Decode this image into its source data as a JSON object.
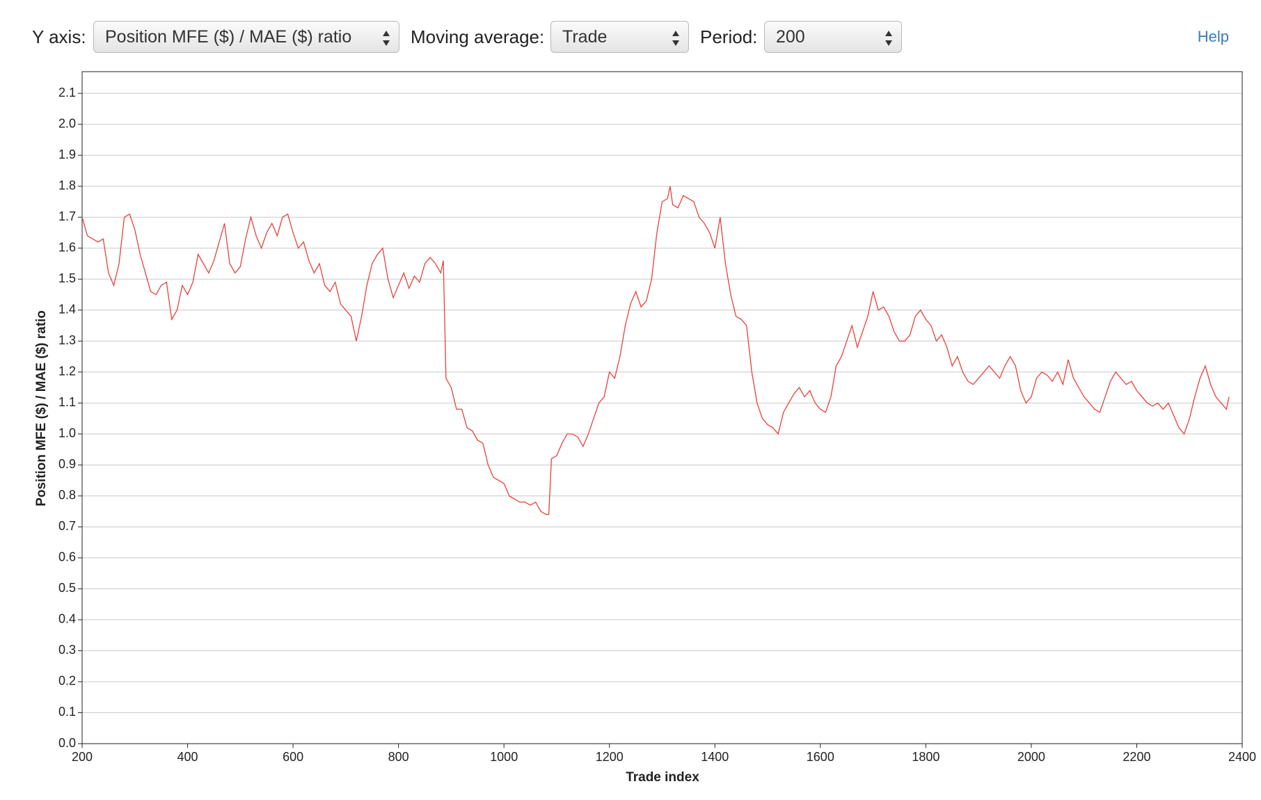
{
  "controls": {
    "y_axis": {
      "label": "Y axis:",
      "value": "Position MFE ($) / MAE ($) ratio"
    },
    "moving_average": {
      "label": "Moving average:",
      "value": "Trade"
    },
    "period": {
      "label": "Period:",
      "value": "200"
    },
    "help": "Help"
  },
  "chart_data": {
    "type": "line",
    "x_label": "Trade index",
    "y_label": "Position MFE ($) / MAE ($) ratio",
    "xlim": [
      200,
      2400
    ],
    "ylim": [
      0,
      2.17
    ],
    "xticks": [
      200,
      400,
      600,
      800,
      1000,
      1200,
      1400,
      1600,
      1800,
      2000,
      2200,
      2400
    ],
    "yticks": [
      {
        "value": 0,
        "label": "0.0"
      },
      0.1,
      0.2,
      0.3,
      0.4,
      0.5,
      0.6,
      0.7,
      0.8,
      0.9,
      {
        "value": 1,
        "label": "1.0"
      },
      1.1,
      1.2,
      1.3,
      1.4,
      1.5,
      1.6,
      1.7,
      1.8,
      1.9,
      {
        "value": 2,
        "label": "2.0"
      },
      2.1
    ],
    "grid": true,
    "series": [
      {
        "color": "#e8413c",
        "x": [
          200,
          210,
          230,
          240,
          250,
          260,
          270,
          280,
          290,
          300,
          310,
          320,
          330,
          340,
          350,
          360,
          370,
          380,
          390,
          400,
          410,
          420,
          430,
          440,
          450,
          460,
          470,
          480,
          490,
          500,
          510,
          520,
          530,
          540,
          550,
          560,
          570,
          580,
          590,
          600,
          610,
          620,
          630,
          640,
          650,
          660,
          670,
          680,
          690,
          700,
          710,
          720,
          730,
          740,
          750,
          760,
          770,
          780,
          790,
          800,
          810,
          820,
          830,
          840,
          850,
          860,
          870,
          880,
          885,
          890,
          900,
          910,
          920,
          930,
          940,
          950,
          960,
          970,
          980,
          990,
          1000,
          1010,
          1020,
          1030,
          1040,
          1050,
          1060,
          1070,
          1080,
          1085,
          1090,
          1100,
          1110,
          1120,
          1130,
          1140,
          1150,
          1160,
          1170,
          1180,
          1190,
          1200,
          1210,
          1220,
          1230,
          1240,
          1250,
          1260,
          1270,
          1280,
          1290,
          1300,
          1310,
          1315,
          1320,
          1330,
          1340,
          1350,
          1360,
          1370,
          1380,
          1390,
          1400,
          1410,
          1420,
          1430,
          1440,
          1450,
          1460,
          1470,
          1480,
          1490,
          1500,
          1510,
          1520,
          1530,
          1540,
          1550,
          1560,
          1570,
          1580,
          1590,
          1600,
          1610,
          1620,
          1630,
          1640,
          1650,
          1660,
          1670,
          1680,
          1690,
          1700,
          1710,
          1720,
          1730,
          1740,
          1750,
          1760,
          1770,
          1780,
          1790,
          1800,
          1810,
          1820,
          1830,
          1840,
          1850,
          1860,
          1870,
          1880,
          1890,
          1900,
          1910,
          1920,
          1930,
          1940,
          1950,
          1960,
          1970,
          1980,
          1990,
          2000,
          2010,
          2020,
          2030,
          2040,
          2050,
          2060,
          2070,
          2080,
          2090,
          2100,
          2110,
          2120,
          2130,
          2140,
          2150,
          2160,
          2170,
          2180,
          2190,
          2200,
          2210,
          2220,
          2230,
          2240,
          2250,
          2260,
          2270,
          2280,
          2290,
          2300,
          2310,
          2320,
          2330,
          2340,
          2350,
          2360,
          2370,
          2375
        ],
        "values": [
          1.7,
          1.64,
          1.62,
          1.63,
          1.52,
          1.48,
          1.55,
          1.7,
          1.71,
          1.66,
          1.58,
          1.52,
          1.46,
          1.45,
          1.48,
          1.49,
          1.37,
          1.4,
          1.48,
          1.45,
          1.49,
          1.58,
          1.55,
          1.52,
          1.56,
          1.62,
          1.68,
          1.55,
          1.52,
          1.54,
          1.63,
          1.7,
          1.64,
          1.6,
          1.65,
          1.68,
          1.64,
          1.7,
          1.71,
          1.65,
          1.6,
          1.62,
          1.56,
          1.52,
          1.55,
          1.48,
          1.46,
          1.49,
          1.42,
          1.4,
          1.38,
          1.3,
          1.38,
          1.48,
          1.55,
          1.58,
          1.6,
          1.5,
          1.44,
          1.48,
          1.52,
          1.47,
          1.51,
          1.49,
          1.55,
          1.57,
          1.55,
          1.52,
          1.56,
          1.18,
          1.15,
          1.08,
          1.08,
          1.02,
          1.01,
          0.98,
          0.97,
          0.9,
          0.86,
          0.85,
          0.84,
          0.8,
          0.79,
          0.78,
          0.78,
          0.77,
          0.78,
          0.75,
          0.74,
          0.74,
          0.92,
          0.93,
          0.97,
          1.0,
          1.0,
          0.99,
          0.96,
          1.0,
          1.05,
          1.1,
          1.12,
          1.2,
          1.18,
          1.25,
          1.35,
          1.42,
          1.46,
          1.41,
          1.43,
          1.5,
          1.65,
          1.75,
          1.76,
          1.8,
          1.74,
          1.73,
          1.77,
          1.76,
          1.75,
          1.7,
          1.68,
          1.65,
          1.6,
          1.7,
          1.55,
          1.45,
          1.38,
          1.37,
          1.35,
          1.2,
          1.1,
          1.05,
          1.03,
          1.02,
          1.0,
          1.07,
          1.1,
          1.13,
          1.15,
          1.12,
          1.14,
          1.1,
          1.08,
          1.07,
          1.12,
          1.22,
          1.25,
          1.3,
          1.35,
          1.28,
          1.33,
          1.38,
          1.46,
          1.4,
          1.41,
          1.38,
          1.33,
          1.3,
          1.3,
          1.32,
          1.38,
          1.4,
          1.37,
          1.35,
          1.3,
          1.32,
          1.28,
          1.22,
          1.25,
          1.2,
          1.17,
          1.16,
          1.18,
          1.2,
          1.22,
          1.2,
          1.18,
          1.22,
          1.25,
          1.22,
          1.14,
          1.1,
          1.12,
          1.18,
          1.2,
          1.19,
          1.17,
          1.2,
          1.16,
          1.24,
          1.18,
          1.15,
          1.12,
          1.1,
          1.08,
          1.07,
          1.12,
          1.17,
          1.2,
          1.18,
          1.16,
          1.17,
          1.14,
          1.12,
          1.1,
          1.09,
          1.1,
          1.08,
          1.1,
          1.06,
          1.02,
          1.0,
          1.05,
          1.12,
          1.18,
          1.22,
          1.16,
          1.12,
          1.1,
          1.08,
          1.12
        ]
      }
    ]
  }
}
